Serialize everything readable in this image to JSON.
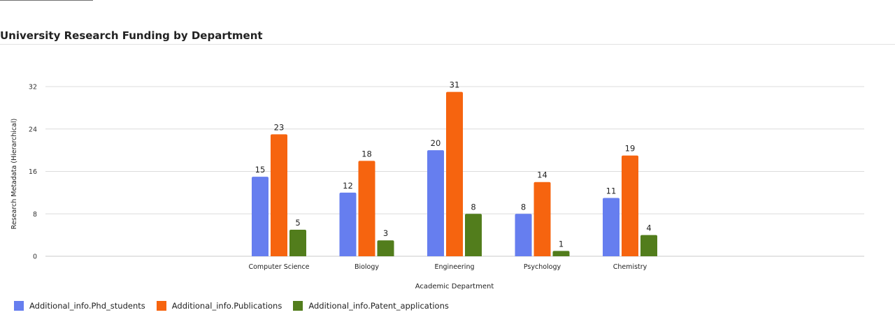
{
  "chart_data": {
    "type": "bar",
    "title": "University Research Funding by Department",
    "xlabel": "Academic Department",
    "ylabel": "Research Metadata (Hierarchical)",
    "categories": [
      "Computer Science",
      "Biology",
      "Engineering",
      "Psychology",
      "Chemistry"
    ],
    "series": [
      {
        "name": "Additional_info.Phd_students",
        "color": "#667eef",
        "values": [
          15,
          12,
          20,
          8,
          11
        ]
      },
      {
        "name": "Additional_info.Publications",
        "color": "#f6640f",
        "values": [
          23,
          18,
          31,
          14,
          19
        ]
      },
      {
        "name": "Additional_info.Patent_applications",
        "color": "#527d1c",
        "values": [
          5,
          3,
          8,
          1,
          4
        ]
      }
    ],
    "ylim": [
      0,
      32
    ],
    "yticks": [
      0,
      8,
      16,
      24,
      32
    ],
    "grid": true,
    "legend_position": "bottom-left",
    "data_labels": true
  }
}
